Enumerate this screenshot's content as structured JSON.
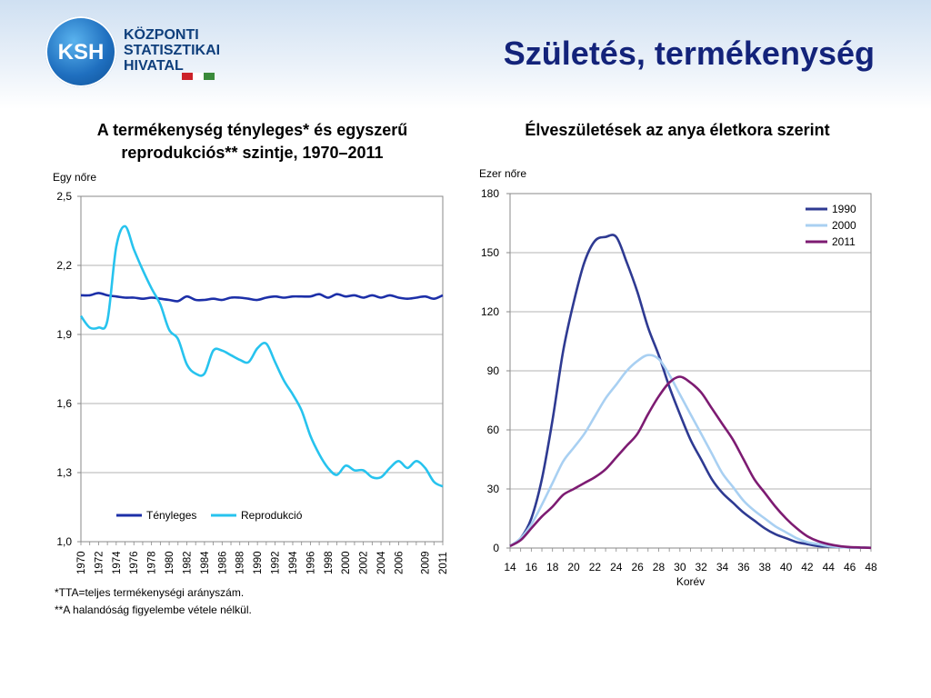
{
  "header": {
    "title": "Születés, termékenység",
    "logo": {
      "circle_text": "KSH",
      "lines": [
        "KÖZPONTI",
        "STATISZTIKAI",
        "HIVATAL"
      ],
      "flag_colors": [
        "#cc2229",
        "#ffffff",
        "#3a8a3a"
      ],
      "circle_color": "#1f6fbf"
    }
  },
  "notes": {
    "line1": "*TTA=teljes termékenységi arányszám.",
    "line2": "**A halandóság figyelembe vétele nélkül."
  },
  "chart_data": [
    {
      "type": "line",
      "title": "A termékenység tényleges* és egyszerű reprodukciós** szintje, 1970–2011",
      "ylabel": "Egy nőre",
      "xlabel": "",
      "ylim": [
        1.0,
        2.5
      ],
      "yticks": [
        "1,0",
        "1,3",
        "1,6",
        "1,9",
        "2,2",
        "2,5"
      ],
      "xlim": [
        1970,
        2011
      ],
      "xtick_labels": [
        "1970",
        "1972",
        "1974",
        "1976",
        "1978",
        "1980",
        "1982",
        "1984",
        "1986",
        "1988",
        "1990",
        "1992",
        "1994",
        "1996",
        "1998",
        "2000",
        "2002",
        "2004",
        "2006",
        "2009",
        "2011"
      ],
      "legend_position": "bottom-center",
      "grid": "horizontal",
      "series": [
        {
          "name": "Tényleges",
          "color": "#1c2fa8",
          "points": [
            [
              1970,
              2.07
            ],
            [
              1971,
              2.07
            ],
            [
              1972,
              2.08
            ],
            [
              1973,
              2.07
            ],
            [
              1974,
              2.065
            ],
            [
              1975,
              2.06
            ],
            [
              1976,
              2.06
            ],
            [
              1977,
              2.055
            ],
            [
              1978,
              2.06
            ],
            [
              1979,
              2.055
            ],
            [
              1980,
              2.05
            ],
            [
              1981,
              2.045
            ],
            [
              1982,
              2.065
            ],
            [
              1983,
              2.05
            ],
            [
              1984,
              2.05
            ],
            [
              1985,
              2.055
            ],
            [
              1986,
              2.05
            ],
            [
              1987,
              2.06
            ],
            [
              1988,
              2.06
            ],
            [
              1989,
              2.055
            ],
            [
              1990,
              2.05
            ],
            [
              1991,
              2.06
            ],
            [
              1992,
              2.065
            ],
            [
              1993,
              2.06
            ],
            [
              1994,
              2.065
            ],
            [
              1995,
              2.065
            ],
            [
              1996,
              2.065
            ],
            [
              1997,
              2.075
            ],
            [
              1998,
              2.06
            ],
            [
              1999,
              2.075
            ],
            [
              2000,
              2.065
            ],
            [
              2001,
              2.07
            ],
            [
              2002,
              2.06
            ],
            [
              2003,
              2.07
            ],
            [
              2004,
              2.06
            ],
            [
              2005,
              2.07
            ],
            [
              2006,
              2.06
            ],
            [
              2007,
              2.055
            ],
            [
              2008,
              2.06
            ],
            [
              2009,
              2.065
            ],
            [
              2010,
              2.055
            ],
            [
              2011,
              2.07
            ]
          ]
        },
        {
          "name": "Reprodukció",
          "color": "#27c3ee",
          "points": [
            [
              1970,
              1.98
            ],
            [
              1971,
              1.93
            ],
            [
              1972,
              1.93
            ],
            [
              1973,
              1.96
            ],
            [
              1974,
              2.28
            ],
            [
              1975,
              2.37
            ],
            [
              1976,
              2.27
            ],
            [
              1977,
              2.18
            ],
            [
              1978,
              2.1
            ],
            [
              1979,
              2.03
            ],
            [
              1980,
              1.92
            ],
            [
              1981,
              1.88
            ],
            [
              1982,
              1.77
            ],
            [
              1983,
              1.73
            ],
            [
              1984,
              1.73
            ],
            [
              1985,
              1.83
            ],
            [
              1986,
              1.83
            ],
            [
              1987,
              1.81
            ],
            [
              1988,
              1.79
            ],
            [
              1989,
              1.78
            ],
            [
              1990,
              1.84
            ],
            [
              1991,
              1.86
            ],
            [
              1992,
              1.78
            ],
            [
              1993,
              1.7
            ],
            [
              1994,
              1.64
            ],
            [
              1995,
              1.57
            ],
            [
              1996,
              1.46
            ],
            [
              1997,
              1.38
            ],
            [
              1998,
              1.32
            ],
            [
              1999,
              1.29
            ],
            [
              2000,
              1.33
            ],
            [
              2001,
              1.31
            ],
            [
              2002,
              1.31
            ],
            [
              2003,
              1.28
            ],
            [
              2004,
              1.28
            ],
            [
              2005,
              1.32
            ],
            [
              2006,
              1.35
            ],
            [
              2007,
              1.32
            ],
            [
              2008,
              1.35
            ],
            [
              2009,
              1.32
            ],
            [
              2010,
              1.26
            ],
            [
              2011,
              1.24
            ]
          ]
        }
      ]
    },
    {
      "type": "line",
      "title": "Élveszületések az anya életkora szerint",
      "ylabel": "Ezer nőre",
      "xlabel": "Korév",
      "ylim": [
        0,
        180
      ],
      "yticks": [
        "0",
        "30",
        "60",
        "90",
        "120",
        "150",
        "180"
      ],
      "xlim": [
        14,
        48
      ],
      "xtick_labels": [
        "14",
        "16",
        "18",
        "20",
        "22",
        "24",
        "26",
        "28",
        "30",
        "32",
        "34",
        "36",
        "38",
        "40",
        "42",
        "44",
        "46",
        "48"
      ],
      "legend_position": "top-right",
      "grid": "horizontal",
      "series": [
        {
          "name": "1990",
          "color": "#2e3a92",
          "points": [
            [
              14,
              1
            ],
            [
              15,
              5
            ],
            [
              16,
              15
            ],
            [
              17,
              35
            ],
            [
              18,
              65
            ],
            [
              19,
              100
            ],
            [
              20,
              125
            ],
            [
              21,
              145
            ],
            [
              22,
              156
            ],
            [
              23,
              158
            ],
            [
              24,
              158
            ],
            [
              25,
              145
            ],
            [
              26,
              130
            ],
            [
              27,
              112
            ],
            [
              28,
              98
            ],
            [
              29,
              82
            ],
            [
              30,
              68
            ],
            [
              31,
              55
            ],
            [
              32,
              45
            ],
            [
              33,
              35
            ],
            [
              34,
              28
            ],
            [
              35,
              23
            ],
            [
              36,
              18
            ],
            [
              37,
              14
            ],
            [
              38,
              10
            ],
            [
              39,
              7
            ],
            [
              40,
              5
            ],
            [
              41,
              3
            ],
            [
              42,
              2
            ],
            [
              43,
              1
            ],
            [
              44,
              0.8
            ],
            [
              45,
              0.5
            ],
            [
              46,
              0.3
            ],
            [
              47,
              0.2
            ],
            [
              48,
              0.1
            ]
          ]
        },
        {
          "name": "2000",
          "color": "#a9d0f2",
          "points": [
            [
              14,
              1
            ],
            [
              15,
              5
            ],
            [
              16,
              12
            ],
            [
              17,
              22
            ],
            [
              18,
              33
            ],
            [
              19,
              44
            ],
            [
              20,
              51
            ],
            [
              21,
              58
            ],
            [
              22,
              67
            ],
            [
              23,
              76
            ],
            [
              24,
              83
            ],
            [
              25,
              90
            ],
            [
              26,
              95
            ],
            [
              27,
              98
            ],
            [
              28,
              96
            ],
            [
              29,
              88
            ],
            [
              30,
              78
            ],
            [
              31,
              68
            ],
            [
              32,
              58
            ],
            [
              33,
              48
            ],
            [
              34,
              38
            ],
            [
              35,
              31
            ],
            [
              36,
              24
            ],
            [
              37,
              19
            ],
            [
              38,
              15
            ],
            [
              39,
              11
            ],
            [
              40,
              8
            ],
            [
              41,
              5
            ],
            [
              42,
              3
            ],
            [
              43,
              2
            ],
            [
              44,
              1
            ],
            [
              45,
              0.5
            ],
            [
              46,
              0.3
            ],
            [
              47,
              0.2
            ],
            [
              48,
              0.1
            ]
          ]
        },
        {
          "name": "2011",
          "color": "#7d1b72",
          "points": [
            [
              14,
              1
            ],
            [
              15,
              4
            ],
            [
              16,
              10
            ],
            [
              17,
              16
            ],
            [
              18,
              21
            ],
            [
              19,
              27
            ],
            [
              20,
              30
            ],
            [
              21,
              33
            ],
            [
              22,
              36
            ],
            [
              23,
              40
            ],
            [
              24,
              46
            ],
            [
              25,
              52
            ],
            [
              26,
              58
            ],
            [
              27,
              68
            ],
            [
              28,
              77
            ],
            [
              29,
              84
            ],
            [
              30,
              87
            ],
            [
              31,
              84
            ],
            [
              32,
              79
            ],
            [
              33,
              71
            ],
            [
              34,
              63
            ],
            [
              35,
              55
            ],
            [
              36,
              45
            ],
            [
              37,
              35
            ],
            [
              38,
              28
            ],
            [
              39,
              21
            ],
            [
              40,
              15
            ],
            [
              41,
              10
            ],
            [
              42,
              6
            ],
            [
              43,
              3.5
            ],
            [
              44,
              2
            ],
            [
              45,
              1
            ],
            [
              46,
              0.5
            ],
            [
              47,
              0.3
            ],
            [
              48,
              0.1
            ]
          ]
        }
      ]
    }
  ]
}
